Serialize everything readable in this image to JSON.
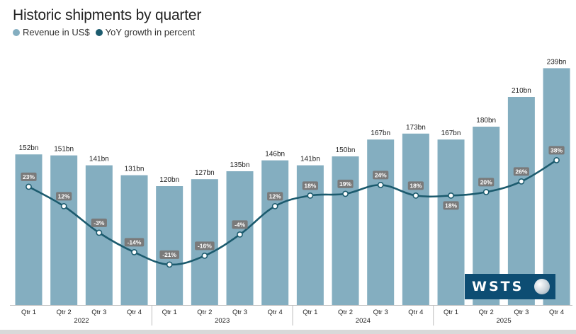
{
  "colors": {
    "bar": "#84aec0",
    "line": "#1c5b6e",
    "label_bg": "#7a7a7a",
    "text": "#222222"
  },
  "legend": {
    "revenue": "Revenue in US$",
    "growth": "YoY growth in percent"
  },
  "logo": {
    "text": "WSTS"
  },
  "chart_data": {
    "type": "bar",
    "title": "Historic shipments by quarter",
    "categories": [
      "Qtr 1",
      "Qtr 2",
      "Qtr 3",
      "Qtr 4",
      "Qtr 1",
      "Qtr 2",
      "Qtr 3",
      "Qtr 4",
      "Qtr 1",
      "Qtr 2",
      "Qtr 3",
      "Qtr 4",
      "Qtr 1",
      "Qtr 2",
      "Qtr 3",
      "Qtr 4"
    ],
    "years": [
      {
        "label": "2022",
        "first": 0,
        "last": 3
      },
      {
        "label": "2023",
        "first": 4,
        "last": 7
      },
      {
        "label": "2024",
        "first": 8,
        "last": 11
      },
      {
        "label": "2025",
        "first": 12,
        "last": 15
      }
    ],
    "series": [
      {
        "name": "Revenue in US$",
        "type": "bar",
        "values": [
          152,
          151,
          141,
          131,
          120,
          127,
          135,
          146,
          141,
          150,
          167,
          173,
          167,
          180,
          210,
          239
        ],
        "labels": [
          "152bn",
          "151bn",
          "141bn",
          "131bn",
          "120bn",
          "127bn",
          "135bn",
          "146bn",
          "141bn",
          "150bn",
          "167bn",
          "173bn",
          "167bn",
          "180bn",
          "210bn",
          "239bn"
        ]
      },
      {
        "name": "YoY growth in percent",
        "type": "line",
        "values": [
          23,
          12,
          -3,
          -14,
          -21,
          -16,
          -4,
          12,
          18,
          19,
          24,
          18,
          18,
          20,
          26,
          38
        ],
        "labels": [
          "23%",
          "12%",
          "-3%",
          "-14%",
          "-21%",
          "-16%",
          "-4%",
          "12%",
          "18%",
          "19%",
          "24%",
          "18%",
          "18%",
          "20%",
          "26%",
          "38%"
        ]
      }
    ],
    "legend_position": "top-left",
    "grid": false
  }
}
